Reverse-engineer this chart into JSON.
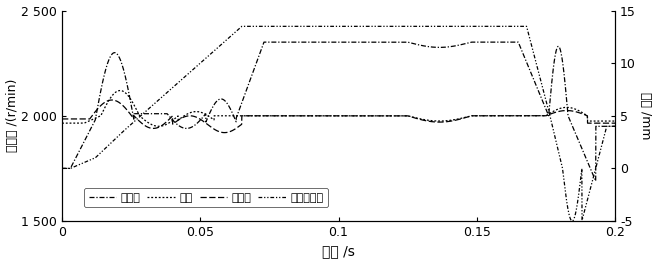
{
  "xlabel": "时间 /s",
  "ylabel_left": "角速度 /(r/min)",
  "ylabel_right": "位移 /mm",
  "xlim": [
    0,
    0.2
  ],
  "ylim_left": [
    1500,
    2500
  ],
  "ylim_right": [
    -5,
    15
  ],
  "yticks_left": [
    1500,
    2000,
    2500
  ],
  "yticks_right": [
    -5,
    0,
    5,
    10,
    15
  ],
  "xticks": [
    0,
    0.05,
    0.1,
    0.15,
    0.2
  ],
  "legend_labels": [
    "结合套",
    "齿轮",
    "导向环",
    "结合套位移"
  ],
  "background_color": "#ffffff"
}
